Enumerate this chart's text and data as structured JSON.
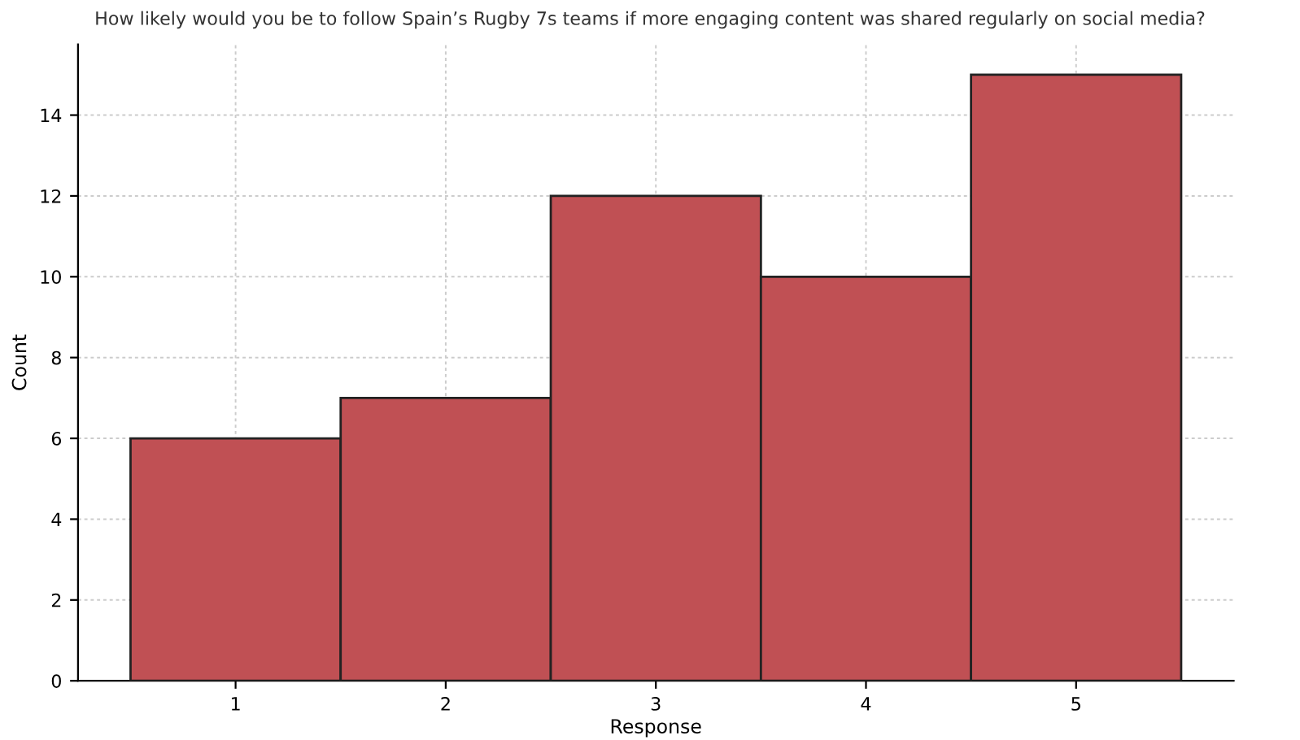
{
  "chart_data": {
    "type": "histogram",
    "title": "How likely would you be to follow Spain’s Rugby 7s teams if more engaging content was shared regularly on social media?",
    "xlabel": "Response",
    "ylabel": "Count",
    "bins": [
      0.5,
      1.5,
      2.5,
      3.5,
      4.5,
      5.5
    ],
    "values": [
      6,
      7,
      12,
      10,
      15
    ],
    "color": "#c05054",
    "xlim": [
      0.25,
      5.75
    ],
    "xticks": [
      1,
      2,
      3,
      4,
      5
    ],
    "ylim": [
      0,
      15.75
    ],
    "yticks": [
      0,
      2,
      4,
      6,
      8,
      10,
      12,
      14
    ],
    "grid": true
  }
}
